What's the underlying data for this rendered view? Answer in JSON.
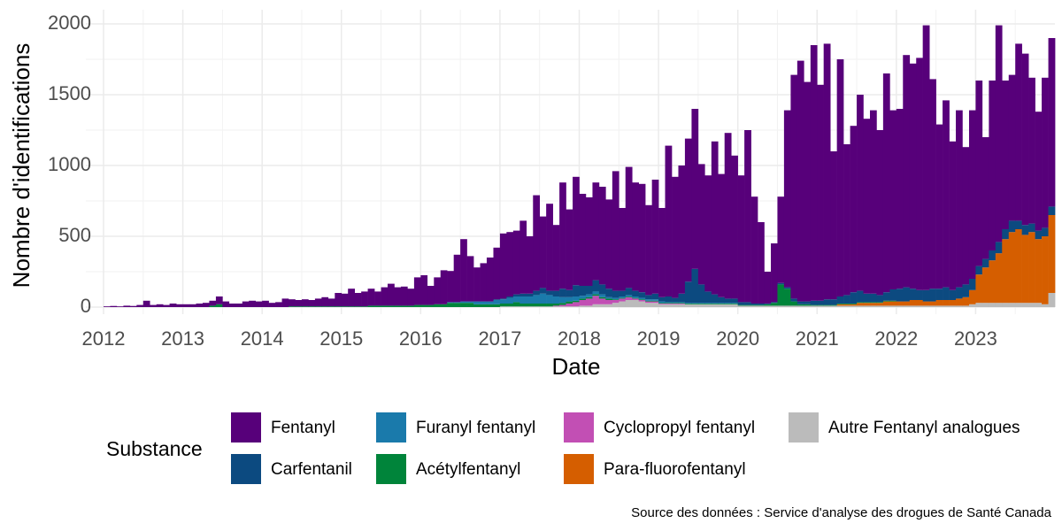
{
  "chart_data": {
    "type": "bar",
    "stacked": true,
    "x_label": "Date",
    "y_label": "Nombre d'identifications",
    "legend_title": "Substance",
    "source": "Source des données : Service d'analyse des drogues de Santé Canada",
    "xlim": [
      2012,
      2024
    ],
    "xticks": [
      2012,
      2013,
      2014,
      2015,
      2016,
      2017,
      2018,
      2019,
      2020,
      2021,
      2022,
      2023
    ],
    "xminor": [
      2012.5,
      2013.5,
      2014.5,
      2015.5,
      2016.5,
      2017.5,
      2018.5,
      2019.5,
      2020.5,
      2021.5,
      2022.5,
      2023.5
    ],
    "ylim": [
      0,
      2050
    ],
    "yticks": [
      0,
      500,
      1000,
      1500,
      2000
    ],
    "yminor": [
      250,
      750,
      1250,
      1750
    ],
    "grid": true,
    "x": [
      2012,
      2012.083,
      2012.167,
      2012.25,
      2012.333,
      2012.417,
      2012.5,
      2012.583,
      2012.667,
      2012.75,
      2012.833,
      2012.917,
      2013,
      2013.083,
      2013.167,
      2013.25,
      2013.333,
      2013.417,
      2013.5,
      2013.583,
      2013.667,
      2013.75,
      2013.833,
      2013.917,
      2014,
      2014.083,
      2014.167,
      2014.25,
      2014.333,
      2014.417,
      2014.5,
      2014.583,
      2014.667,
      2014.75,
      2014.833,
      2014.917,
      2015,
      2015.083,
      2015.167,
      2015.25,
      2015.333,
      2015.417,
      2015.5,
      2015.583,
      2015.667,
      2015.75,
      2015.833,
      2015.917,
      2016,
      2016.083,
      2016.167,
      2016.25,
      2016.333,
      2016.417,
      2016.5,
      2016.583,
      2016.667,
      2016.75,
      2016.833,
      2016.917,
      2017,
      2017.083,
      2017.167,
      2017.25,
      2017.333,
      2017.417,
      2017.5,
      2017.583,
      2017.667,
      2017.75,
      2017.833,
      2017.917,
      2018,
      2018.083,
      2018.167,
      2018.25,
      2018.333,
      2018.417,
      2018.5,
      2018.583,
      2018.667,
      2018.75,
      2018.833,
      2018.917,
      2019,
      2019.083,
      2019.167,
      2019.25,
      2019.333,
      2019.417,
      2019.5,
      2019.583,
      2019.667,
      2019.75,
      2019.833,
      2019.917,
      2020,
      2020.083,
      2020.167,
      2020.25,
      2020.333,
      2020.417,
      2020.5,
      2020.583,
      2020.667,
      2020.75,
      2020.833,
      2020.917,
      2021,
      2021.083,
      2021.167,
      2021.25,
      2021.333,
      2021.417,
      2021.5,
      2021.583,
      2021.667,
      2021.75,
      2021.833,
      2021.917,
      2022,
      2022.083,
      2022.167,
      2022.25,
      2022.333,
      2022.417,
      2022.5,
      2022.583,
      2022.667,
      2022.75,
      2022.833,
      2022.917,
      2023,
      2023.083,
      2023.167,
      2023.25,
      2023.333,
      2023.417,
      2023.5,
      2023.583,
      2023.667,
      2023.75,
      2023.833,
      2023.917
    ],
    "series": [
      {
        "name": "Fentanyl",
        "color": "#57007a",
        "values": [
          5,
          8,
          5,
          10,
          8,
          15,
          45,
          15,
          20,
          15,
          25,
          20,
          20,
          20,
          25,
          30,
          35,
          55,
          40,
          25,
          25,
          40,
          45,
          40,
          45,
          30,
          35,
          60,
          50,
          45,
          50,
          45,
          55,
          65,
          55,
          95,
          90,
          125,
          95,
          105,
          120,
          100,
          130,
          155,
          130,
          135,
          120,
          195,
          210,
          135,
          190,
          240,
          220,
          335,
          440,
          320,
          240,
          270,
          310,
          365,
          460,
          455,
          450,
          515,
          405,
          675,
          505,
          615,
          465,
          750,
          570,
          765,
          650,
          625,
          690,
          690,
          630,
          845,
          585,
          855,
          765,
          765,
          635,
          805,
          630,
          1065,
          855,
          905,
          1010,
          1130,
          850,
          820,
          1080,
          870,
          1170,
          1010,
          895,
          1215,
          755,
          575,
          225,
          415,
          610,
          1250,
          1580,
          1700,
          1550,
          1805,
          1525,
          1805,
          1045,
          1675,
          1065,
          1175,
          1385,
          1235,
          1295,
          1165,
          1545,
          1265,
          1270,
          1640,
          1590,
          1640,
          1870,
          1480,
          1160,
          1320,
          1050,
          1250,
          970,
          1190,
          1310,
          860,
          1200,
          1530,
          1050,
          1030,
          1250,
          1210,
          1030,
          840,
          1060,
          1190
        ]
      },
      {
        "name": "Carfentanil",
        "color": "#0c4a80",
        "values": [
          0,
          0,
          0,
          0,
          0,
          0,
          0,
          0,
          0,
          0,
          0,
          0,
          0,
          0,
          0,
          0,
          0,
          0,
          0,
          0,
          0,
          0,
          0,
          0,
          0,
          0,
          0,
          0,
          0,
          0,
          0,
          0,
          0,
          0,
          0,
          0,
          0,
          0,
          0,
          0,
          0,
          0,
          0,
          0,
          0,
          0,
          0,
          0,
          0,
          0,
          0,
          0,
          0,
          0,
          0,
          0,
          0,
          0,
          0,
          5,
          5,
          10,
          15,
          20,
          20,
          30,
          40,
          30,
          40,
          60,
          50,
          80,
          70,
          60,
          80,
          70,
          60,
          50,
          40,
          50,
          40,
          40,
          30,
          40,
          30,
          40,
          30,
          60,
          150,
          240,
          130,
          80,
          60,
          40,
          30,
          30,
          20,
          20,
          10,
          10,
          5,
          5,
          10,
          10,
          20,
          20,
          20,
          30,
          30,
          40,
          40,
          50,
          60,
          80,
          80,
          60,
          60,
          50,
          60,
          80,
          90,
          100,
          80,
          70,
          80,
          90,
          80,
          90,
          70,
          80,
          90,
          80,
          60,
          60,
          70,
          80,
          70,
          80,
          60,
          70,
          60,
          60,
          60,
          60
        ]
      },
      {
        "name": "Furanyl fentanyl",
        "color": "#1a7aab",
        "values": [
          0,
          0,
          0,
          0,
          0,
          0,
          0,
          0,
          0,
          0,
          0,
          0,
          0,
          0,
          0,
          0,
          0,
          0,
          0,
          0,
          0,
          0,
          0,
          0,
          0,
          0,
          0,
          0,
          0,
          0,
          0,
          0,
          0,
          0,
          0,
          0,
          0,
          0,
          0,
          0,
          0,
          0,
          0,
          0,
          0,
          0,
          0,
          0,
          0,
          0,
          0,
          0,
          5,
          5,
          10,
          10,
          20,
          20,
          20,
          30,
          30,
          40,
          40,
          50,
          50,
          60,
          70,
          60,
          50,
          40,
          30,
          30,
          20,
          20,
          20,
          20,
          10,
          10,
          10,
          10,
          10,
          10,
          10,
          10,
          10,
          5,
          5,
          5,
          5,
          5,
          5,
          5,
          5,
          5,
          5,
          5,
          0,
          0,
          0,
          0,
          0,
          0,
          0,
          0,
          0,
          0,
          0,
          0,
          0,
          0,
          0,
          0,
          0,
          0,
          0,
          0,
          0,
          0,
          0,
          0,
          0,
          0,
          0,
          0,
          0,
          0,
          0,
          0,
          0,
          0,
          0,
          0,
          0,
          0,
          0,
          0,
          0,
          0,
          0,
          0,
          0,
          0,
          0,
          0
        ]
      },
      {
        "name": "Acétylfentanyl",
        "color": "#00843a",
        "values": [
          0,
          0,
          0,
          0,
          0,
          0,
          0,
          0,
          0,
          0,
          0,
          0,
          0,
          0,
          0,
          0,
          10,
          20,
          0,
          0,
          0,
          0,
          0,
          0,
          0,
          0,
          0,
          0,
          5,
          5,
          5,
          5,
          5,
          5,
          5,
          5,
          5,
          5,
          5,
          5,
          10,
          10,
          10,
          10,
          10,
          10,
          10,
          15,
          15,
          15,
          20,
          20,
          30,
          30,
          30,
          30,
          20,
          20,
          20,
          20,
          20,
          20,
          30,
          20,
          20,
          20,
          20,
          20,
          15,
          15,
          15,
          10,
          10,
          10,
          10,
          10,
          10,
          5,
          5,
          5,
          5,
          5,
          5,
          5,
          5,
          5,
          5,
          5,
          5,
          5,
          5,
          5,
          5,
          5,
          5,
          5,
          5,
          5,
          5,
          5,
          10,
          20,
          150,
          120,
          30,
          10,
          10,
          5,
          5,
          5,
          5,
          5,
          5,
          5,
          5,
          5,
          5,
          5,
          5,
          5,
          0,
          0,
          0,
          0,
          0,
          0,
          0,
          0,
          0,
          0,
          0,
          0,
          0,
          0,
          0,
          0,
          0,
          0,
          0,
          0,
          0,
          0,
          0,
          0
        ]
      },
      {
        "name": "Cyclopropyl fentanyl",
        "color": "#c24fb4",
        "values": [
          0,
          0,
          0,
          0,
          0,
          0,
          0,
          0,
          0,
          0,
          0,
          0,
          0,
          0,
          0,
          0,
          0,
          0,
          0,
          0,
          0,
          0,
          0,
          0,
          0,
          0,
          0,
          0,
          0,
          0,
          0,
          0,
          0,
          0,
          0,
          0,
          0,
          0,
          0,
          0,
          0,
          0,
          0,
          0,
          0,
          0,
          0,
          0,
          0,
          0,
          0,
          0,
          0,
          0,
          0,
          0,
          0,
          0,
          0,
          0,
          0,
          0,
          0,
          0,
          0,
          0,
          0,
          0,
          5,
          10,
          20,
          30,
          40,
          50,
          60,
          40,
          30,
          20,
          20,
          20,
          10,
          10,
          10,
          10,
          5,
          5,
          5,
          5,
          0,
          0,
          0,
          0,
          0,
          0,
          0,
          0,
          0,
          0,
          0,
          0,
          0,
          0,
          0,
          0,
          0,
          0,
          0,
          0,
          0,
          0,
          0,
          0,
          0,
          0,
          0,
          0,
          0,
          0,
          0,
          0,
          0,
          0,
          0,
          0,
          0,
          0,
          0,
          0,
          0,
          0,
          0,
          0,
          0,
          0,
          0,
          0,
          0,
          0,
          0,
          0,
          0,
          0,
          0,
          0
        ]
      },
      {
        "name": "Para-fluorofentanyl",
        "color": "#d55e00",
        "values": [
          0,
          0,
          0,
          0,
          0,
          0,
          0,
          0,
          0,
          0,
          0,
          0,
          0,
          0,
          0,
          0,
          0,
          0,
          0,
          0,
          0,
          0,
          0,
          0,
          0,
          0,
          0,
          0,
          0,
          0,
          0,
          0,
          0,
          0,
          0,
          0,
          0,
          0,
          0,
          0,
          0,
          0,
          0,
          0,
          0,
          0,
          0,
          0,
          0,
          0,
          0,
          0,
          0,
          0,
          0,
          0,
          0,
          0,
          0,
          0,
          0,
          0,
          0,
          0,
          0,
          0,
          0,
          0,
          0,
          0,
          0,
          0,
          0,
          0,
          0,
          0,
          0,
          0,
          0,
          0,
          0,
          0,
          0,
          0,
          0,
          0,
          0,
          0,
          0,
          0,
          0,
          0,
          0,
          0,
          0,
          0,
          0,
          0,
          0,
          0,
          0,
          0,
          0,
          0,
          0,
          0,
          0,
          0,
          0,
          0,
          0,
          10,
          10,
          10,
          20,
          20,
          20,
          20,
          30,
          30,
          30,
          30,
          40,
          40,
          30,
          30,
          40,
          40,
          40,
          50,
          60,
          100,
          200,
          250,
          300,
          350,
          450,
          500,
          520,
          480,
          500,
          450,
          480,
          550
        ]
      },
      {
        "name": "Autre Fentanyl analogues",
        "color": "#bbbbbb",
        "values": [
          0,
          0,
          0,
          0,
          0,
          0,
          0,
          0,
          0,
          0,
          0,
          0,
          0,
          0,
          0,
          0,
          0,
          0,
          0,
          0,
          0,
          0,
          0,
          0,
          0,
          0,
          0,
          0,
          0,
          0,
          0,
          0,
          0,
          0,
          0,
          0,
          0,
          0,
          0,
          0,
          0,
          0,
          0,
          0,
          0,
          0,
          0,
          0,
          0,
          0,
          0,
          0,
          0,
          0,
          0,
          0,
          0,
          0,
          0,
          0,
          5,
          5,
          5,
          5,
          5,
          5,
          5,
          5,
          5,
          5,
          5,
          5,
          10,
          10,
          20,
          20,
          20,
          30,
          40,
          50,
          50,
          40,
          30,
          30,
          20,
          20,
          20,
          20,
          20,
          20,
          20,
          20,
          20,
          20,
          20,
          20,
          10,
          10,
          10,
          10,
          10,
          10,
          10,
          10,
          10,
          10,
          10,
          10,
          10,
          10,
          10,
          10,
          10,
          10,
          10,
          10,
          10,
          10,
          10,
          10,
          10,
          10,
          10,
          10,
          10,
          10,
          10,
          10,
          10,
          10,
          10,
          20,
          30,
          30,
          30,
          30,
          30,
          30,
          30,
          30,
          30,
          30,
          20,
          100
        ]
      }
    ]
  }
}
